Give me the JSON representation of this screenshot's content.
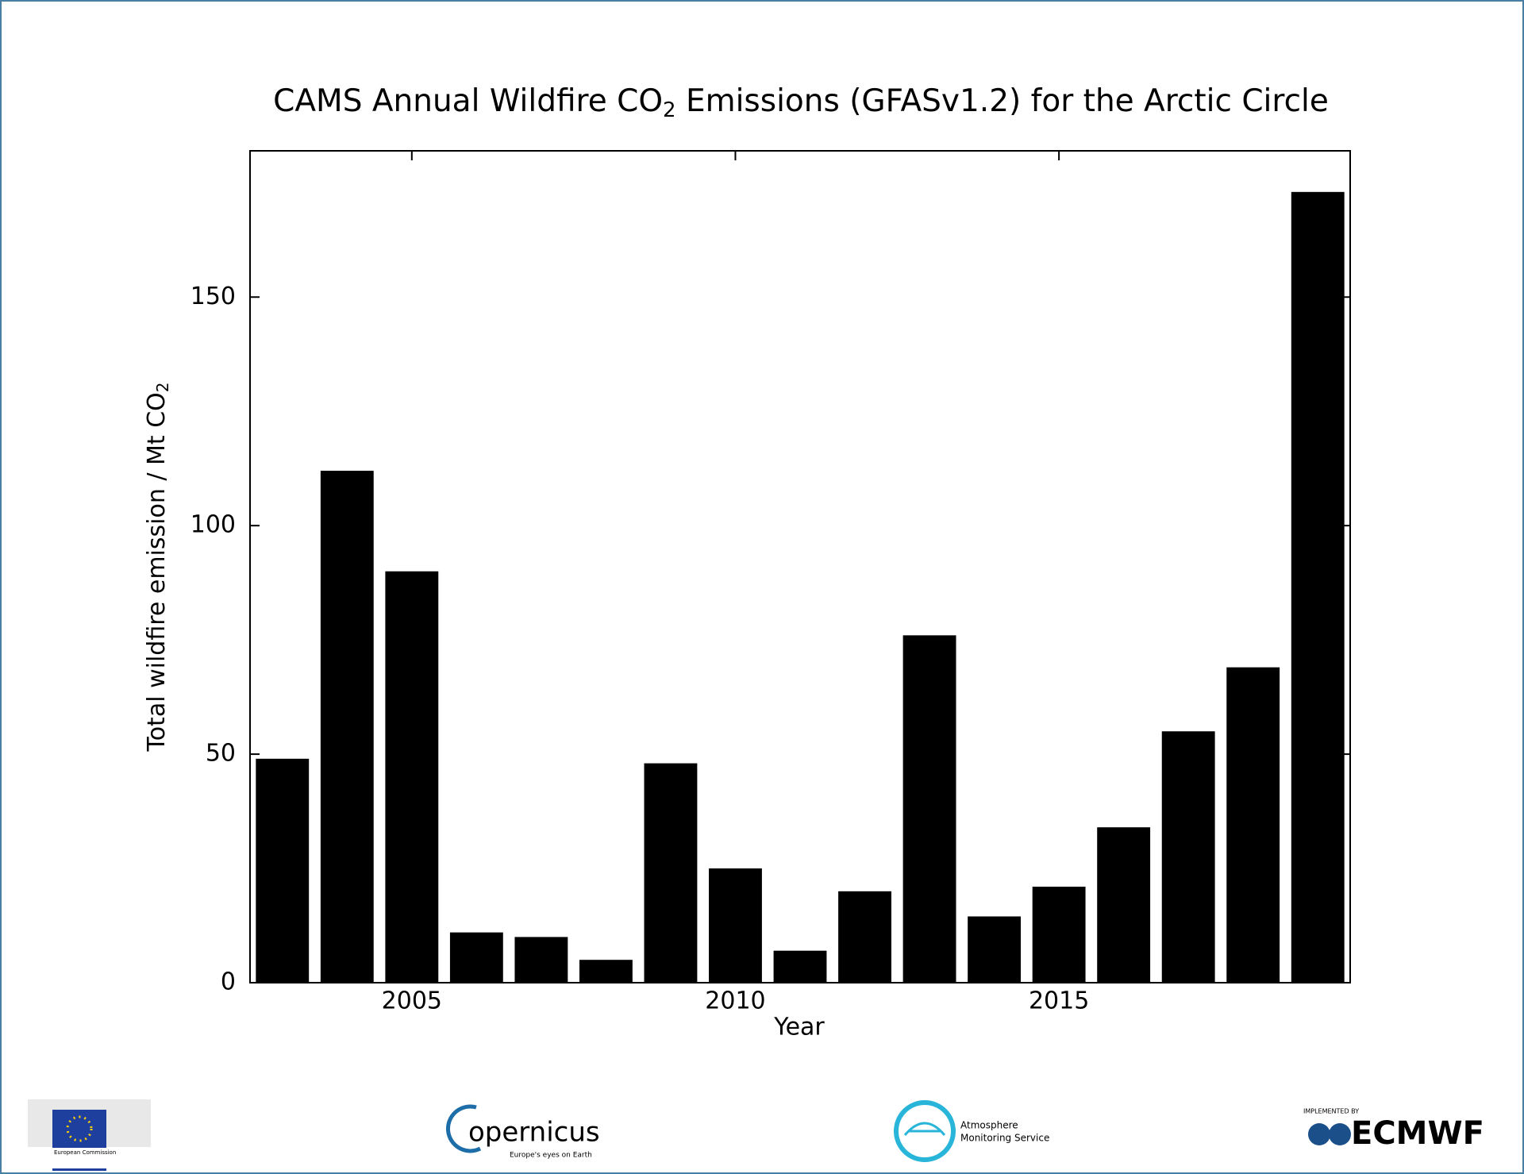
{
  "chart_data": {
    "type": "bar",
    "title": [
      "CAMS Annual  Wildfire CO",
      "2",
      " Emissions  (GFASv1.2) for the Arctic Circle"
    ],
    "x_label": "Year",
    "y_label": [
      "Total wildfire emission / Mt CO",
      "2"
    ],
    "x": [
      2003,
      2004,
      2005,
      2006,
      2007,
      2008,
      2009,
      2010,
      2011,
      2012,
      2013,
      2014,
      2015,
      2016,
      2017,
      2018,
      2019
    ],
    "values": [
      49,
      112,
      90,
      11,
      10,
      5,
      48,
      25,
      7,
      20,
      76,
      14.5,
      21,
      34,
      55,
      69,
      173
    ],
    "color": "#000000",
    "xlim": [
      2002.5,
      2019.5
    ],
    "xticks": [
      2005,
      2010,
      2015
    ],
    "ylim": [
      0,
      182
    ],
    "yticks": [
      0,
      50,
      100,
      150
    ],
    "grid": false
  },
  "footer": {
    "ec": "European Commission",
    "copernicus": "opernicus",
    "copernicus_tagline": "Europe's eyes on Earth",
    "cams": [
      "Atmosphere",
      "Monitoring Service"
    ],
    "implemented": "IMPLEMENTED BY",
    "ecmwf": "ECMWF"
  }
}
